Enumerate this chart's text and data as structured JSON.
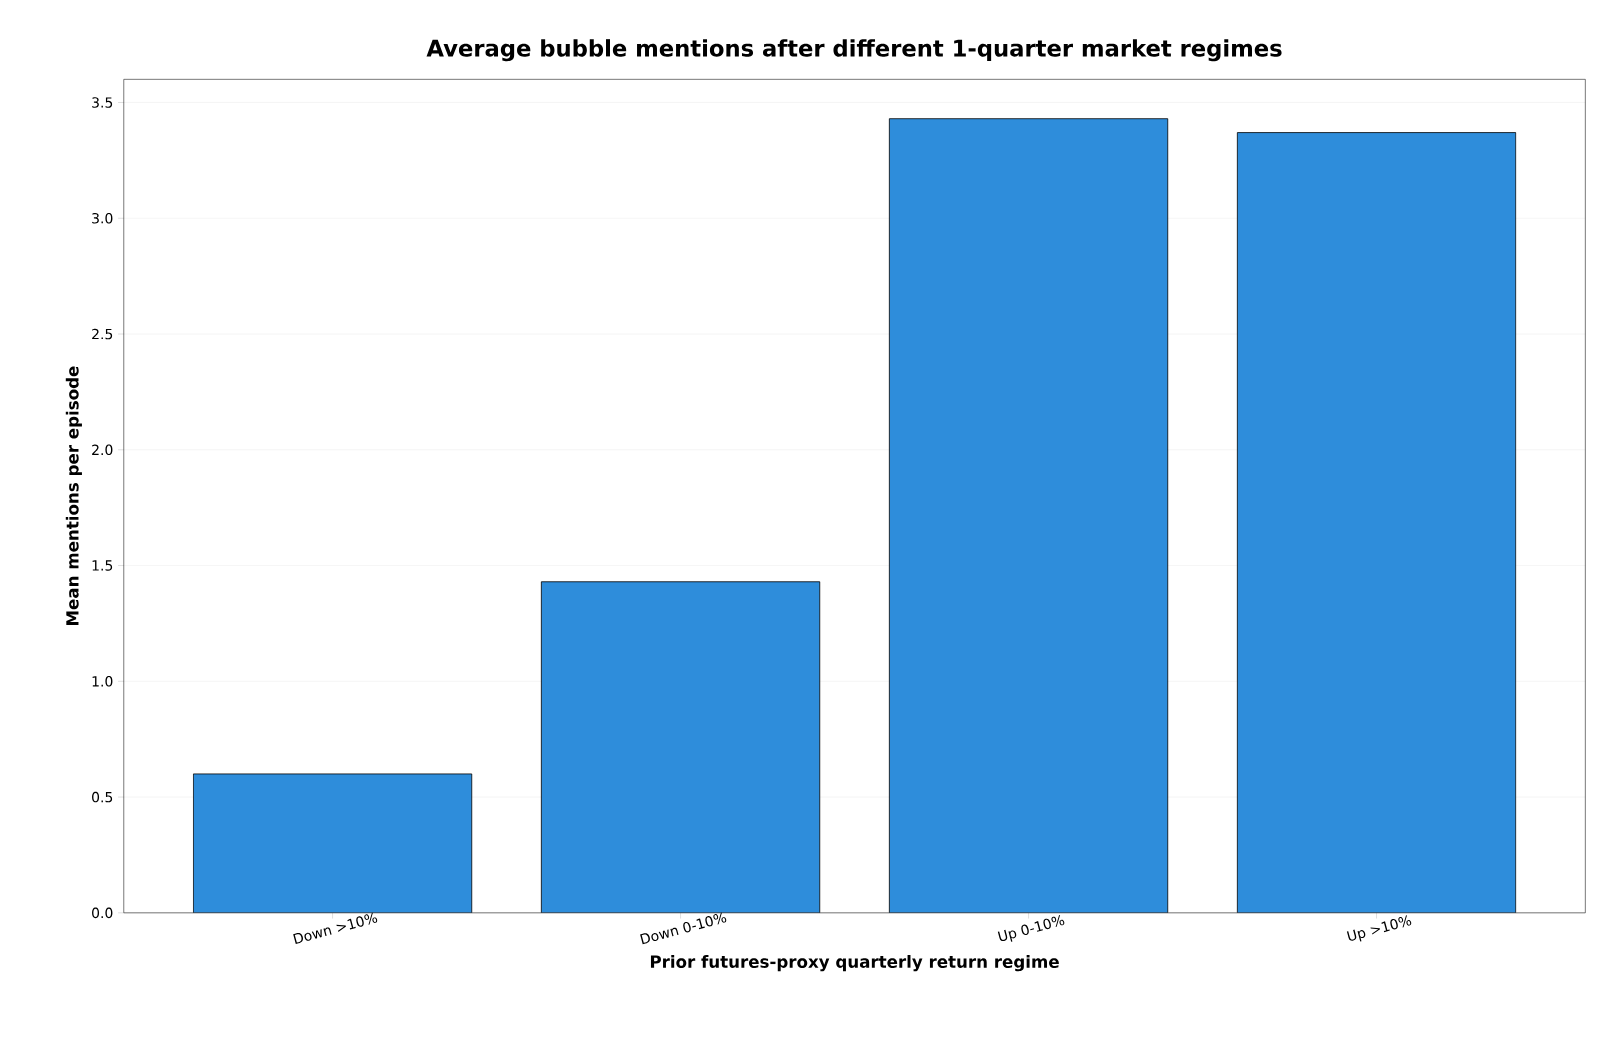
{
  "chart_data": {
    "type": "bar",
    "title": "Average bubble mentions after different 1-quarter market regimes",
    "xlabel": "Prior futures-proxy quarterly return regime",
    "ylabel": "Mean mentions per episode",
    "categories": [
      "Down >10%",
      "Down 0-10%",
      "Up 0-10%",
      "Up >10%"
    ],
    "values": [
      0.6,
      1.43,
      3.43,
      3.37
    ],
    "color": "#2e8ddb",
    "ylim": [
      0,
      3.6
    ],
    "yticks": [
      {
        "value": 0,
        "label": "0.0"
      },
      {
        "value": 0.5,
        "label": "0.5"
      },
      {
        "value": 1,
        "label": "1.0"
      },
      {
        "value": 1.5,
        "label": "1.5"
      },
      {
        "value": 2,
        "label": "2.0"
      },
      {
        "value": 2.5,
        "label": "2.5"
      },
      {
        "value": 3,
        "label": "3.0"
      },
      {
        "value": 3.5,
        "label": "3.5"
      }
    ],
    "grid": "y"
  }
}
